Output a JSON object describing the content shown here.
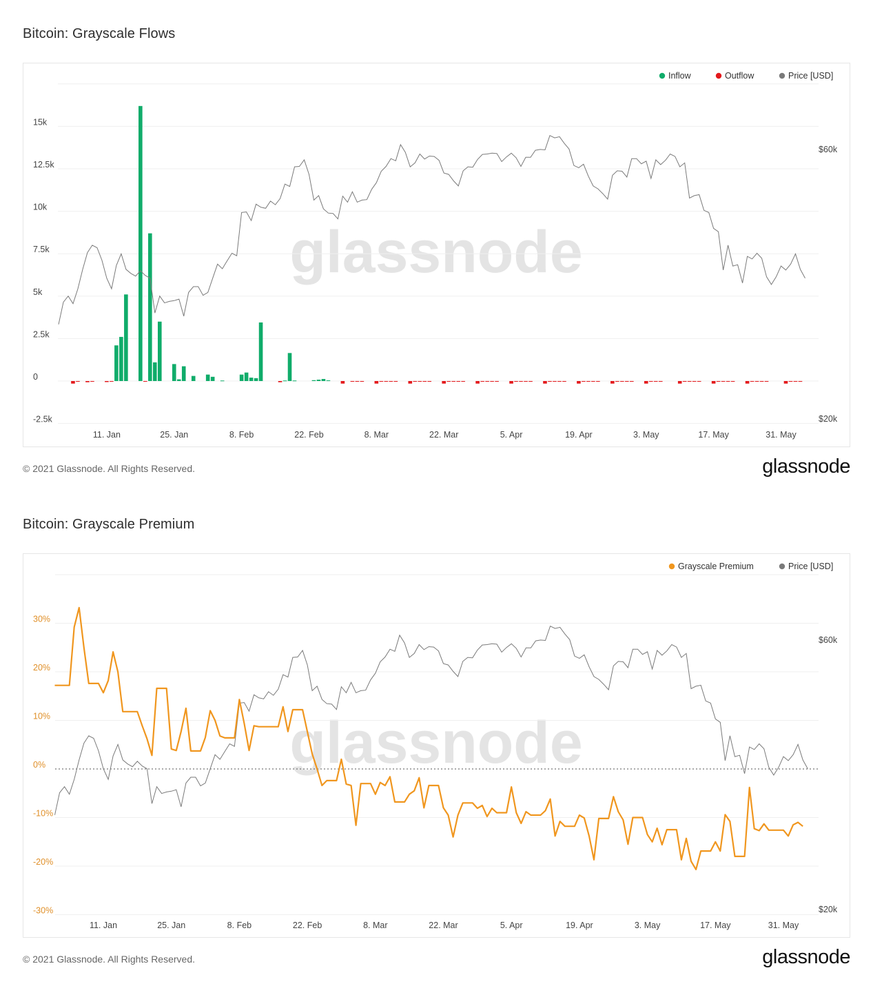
{
  "chart_data": [
    {
      "type": "bar",
      "title": "Bitcoin: Grayscale Flows",
      "start_date": "2021-01-01",
      "legend": [
        {
          "label": "Inflow",
          "color": "#10ac6a"
        },
        {
          "label": "Outflow",
          "color": "#e3191c"
        },
        {
          "label": "Price [USD]",
          "color": "#7a7a7a"
        }
      ],
      "legend_position": "top-right",
      "y_left": {
        "ticks": [
          "15k",
          "12.5k",
          "10k",
          "7.5k",
          "5k",
          "2.5k",
          "0",
          "-2.5k"
        ],
        "tick_values": [
          15000,
          12500,
          10000,
          7500,
          5000,
          2500,
          0,
          -2500
        ],
        "range": [
          -2500,
          17500
        ]
      },
      "y_right": {
        "ticks": [
          "$60k",
          "$20k"
        ],
        "tick_values": [
          60000,
          20000
        ],
        "scale": "log"
      },
      "x_ticks": [
        {
          "label": "11. Jan",
          "day": 10
        },
        {
          "label": "25. Jan",
          "day": 24
        },
        {
          "label": "8. Feb",
          "day": 38
        },
        {
          "label": "22. Feb",
          "day": 52
        },
        {
          "label": "8. Mar",
          "day": 66
        },
        {
          "label": "22. Mar",
          "day": 80
        },
        {
          "label": "5. Apr",
          "day": 94
        },
        {
          "label": "19. Apr",
          "day": 108
        },
        {
          "label": "3. May",
          "day": 122
        },
        {
          "label": "17. May",
          "day": 136
        },
        {
          "label": "31. May",
          "day": 150
        }
      ],
      "inflow": [
        [
          12,
          2100
        ],
        [
          13,
          2600
        ],
        [
          14,
          5100
        ],
        [
          17,
          16200
        ],
        [
          19,
          8700
        ],
        [
          20,
          1100
        ],
        [
          21,
          3500
        ],
        [
          24,
          1000
        ],
        [
          25,
          100
        ],
        [
          26,
          870
        ],
        [
          28,
          300
        ],
        [
          31,
          380
        ],
        [
          32,
          250
        ],
        [
          34,
          30
        ],
        [
          38,
          380
        ],
        [
          39,
          500
        ],
        [
          40,
          200
        ],
        [
          41,
          170
        ],
        [
          42,
          3450
        ],
        [
          47,
          30
        ],
        [
          48,
          1650
        ],
        [
          49,
          30
        ],
        [
          53,
          50
        ],
        [
          54,
          80
        ],
        [
          55,
          120
        ],
        [
          56,
          40
        ]
      ],
      "outflow": [
        [
          3,
          -90
        ],
        [
          4,
          -40
        ],
        [
          6,
          -70
        ],
        [
          7,
          -40
        ],
        [
          10,
          -60
        ],
        [
          11,
          -30
        ],
        [
          18,
          -40
        ],
        [
          46,
          -70
        ],
        [
          59,
          -90
        ],
        [
          61,
          -30
        ],
        [
          62,
          -30
        ],
        [
          63,
          -30
        ],
        [
          66,
          -90
        ],
        [
          67,
          -30
        ],
        [
          68,
          -30
        ],
        [
          69,
          -30
        ],
        [
          70,
          -30
        ],
        [
          73,
          -90
        ],
        [
          74,
          -30
        ],
        [
          75,
          -30
        ],
        [
          76,
          -30
        ],
        [
          77,
          -30
        ],
        [
          80,
          -90
        ],
        [
          81,
          -30
        ],
        [
          82,
          -30
        ],
        [
          83,
          -30
        ],
        [
          84,
          -30
        ],
        [
          87,
          -90
        ],
        [
          88,
          -30
        ],
        [
          89,
          -30
        ],
        [
          90,
          -30
        ],
        [
          91,
          -30
        ],
        [
          94,
          -90
        ],
        [
          95,
          -30
        ],
        [
          96,
          -30
        ],
        [
          97,
          -30
        ],
        [
          98,
          -30
        ],
        [
          101,
          -90
        ],
        [
          102,
          -30
        ],
        [
          103,
          -30
        ],
        [
          104,
          -30
        ],
        [
          105,
          -30
        ],
        [
          108,
          -90
        ],
        [
          109,
          -30
        ],
        [
          110,
          -30
        ],
        [
          111,
          -30
        ],
        [
          112,
          -30
        ],
        [
          115,
          -90
        ],
        [
          116,
          -30
        ],
        [
          117,
          -30
        ],
        [
          118,
          -30
        ],
        [
          119,
          -30
        ],
        [
          122,
          -90
        ],
        [
          123,
          -30
        ],
        [
          124,
          -30
        ],
        [
          125,
          -30
        ],
        [
          129,
          -90
        ],
        [
          130,
          -30
        ],
        [
          131,
          -30
        ],
        [
          132,
          -30
        ],
        [
          133,
          -30
        ],
        [
          136,
          -90
        ],
        [
          137,
          -30
        ],
        [
          138,
          -30
        ],
        [
          139,
          -30
        ],
        [
          140,
          -30
        ],
        [
          143,
          -90
        ],
        [
          144,
          -30
        ],
        [
          145,
          -30
        ],
        [
          146,
          -30
        ],
        [
          147,
          -30
        ],
        [
          151,
          -90
        ],
        [
          152,
          -30
        ],
        [
          153,
          -30
        ],
        [
          154,
          -30
        ]
      ],
      "price_series": "price"
    },
    {
      "type": "line",
      "title": "Bitcoin: Grayscale Premium",
      "start_date": "2021-01-01",
      "legend": [
        {
          "label": "Grayscale Premium",
          "color": "#f0961e"
        },
        {
          "label": "Price [USD]",
          "color": "#7a7a7a"
        }
      ],
      "legend_position": "top-right",
      "y_left": {
        "ticks": [
          "30%",
          "20%",
          "10%",
          "0%",
          "-10%",
          "-20%",
          "-30%"
        ],
        "tick_values": [
          30,
          20,
          10,
          0,
          -10,
          -20,
          -30
        ],
        "range": [
          -30,
          40
        ]
      },
      "y_right": {
        "ticks": [
          "$60k",
          "$20k"
        ],
        "tick_values": [
          60000,
          20000
        ],
        "scale": "log"
      },
      "x_ticks": [
        {
          "label": "11. Jan",
          "day": 10
        },
        {
          "label": "25. Jan",
          "day": 24
        },
        {
          "label": "8. Feb",
          "day": 38
        },
        {
          "label": "22. Feb",
          "day": 52
        },
        {
          "label": "8. Mar",
          "day": 66
        },
        {
          "label": "22. Mar",
          "day": 80
        },
        {
          "label": "5. Apr",
          "day": 94
        },
        {
          "label": "19. Apr",
          "day": 108
        },
        {
          "label": "3. May",
          "day": 122
        },
        {
          "label": "17. May",
          "day": 136
        },
        {
          "label": "31. May",
          "day": 150
        }
      ],
      "premium": [
        [
          0,
          17.2
        ],
        [
          3,
          17.2
        ],
        [
          4,
          29.2
        ],
        [
          5,
          33.2
        ],
        [
          6,
          25
        ],
        [
          7,
          17.6
        ],
        [
          9,
          17.6
        ],
        [
          10,
          15.7
        ],
        [
          11,
          18.2
        ],
        [
          12,
          24.1
        ],
        [
          13,
          20
        ],
        [
          14,
          11.8
        ],
        [
          17,
          11.8
        ],
        [
          18,
          8.9
        ],
        [
          19,
          6.2
        ],
        [
          20,
          2.8
        ],
        [
          21,
          16.6
        ],
        [
          23,
          16.6
        ],
        [
          24,
          4.1
        ],
        [
          25,
          3.8
        ],
        [
          26,
          7.7
        ],
        [
          27,
          12.5
        ],
        [
          28,
          3.7
        ],
        [
          30,
          3.7
        ],
        [
          31,
          6.5
        ],
        [
          32,
          12
        ],
        [
          33,
          10
        ],
        [
          34,
          6.8
        ],
        [
          35,
          6.4
        ],
        [
          37,
          6.4
        ],
        [
          38,
          14.3
        ],
        [
          39,
          9.4
        ],
        [
          40,
          3.8
        ],
        [
          41,
          8.9
        ],
        [
          42,
          8.7
        ],
        [
          46,
          8.7
        ],
        [
          47,
          12.8
        ],
        [
          48,
          7.7
        ],
        [
          49,
          12.2
        ],
        [
          51,
          12.2
        ],
        [
          53,
          3.1
        ],
        [
          54,
          0
        ],
        [
          55,
          -3.4
        ],
        [
          56,
          -2.4
        ],
        [
          58,
          -2.4
        ],
        [
          59,
          2
        ],
        [
          60,
          -3.1
        ],
        [
          61,
          -3.4
        ],
        [
          62,
          -11.6
        ],
        [
          63,
          -3
        ],
        [
          65,
          -3
        ],
        [
          66,
          -5.2
        ],
        [
          67,
          -2.8
        ],
        [
          68,
          -3.4
        ],
        [
          69,
          -1.6
        ],
        [
          70,
          -6.8
        ],
        [
          72,
          -6.8
        ],
        [
          73,
          -5.2
        ],
        [
          74,
          -4.5
        ],
        [
          75,
          -1.8
        ],
        [
          76,
          -8
        ],
        [
          77,
          -3.4
        ],
        [
          79,
          -3.4
        ],
        [
          80,
          -8
        ],
        [
          81,
          -9.5
        ],
        [
          82,
          -14
        ],
        [
          83,
          -9.5
        ],
        [
          84,
          -7
        ],
        [
          86,
          -7
        ],
        [
          87,
          -8.1
        ],
        [
          88,
          -7.5
        ],
        [
          89,
          -9.8
        ],
        [
          90,
          -8.1
        ],
        [
          91,
          -9
        ],
        [
          93,
          -9
        ],
        [
          94,
          -3.7
        ],
        [
          95,
          -9
        ],
        [
          96,
          -11.2
        ],
        [
          97,
          -8.8
        ],
        [
          98,
          -9.5
        ],
        [
          100,
          -9.5
        ],
        [
          101,
          -8.6
        ],
        [
          102,
          -6.2
        ],
        [
          103,
          -13.8
        ],
        [
          104,
          -10.8
        ],
        [
          105,
          -11.8
        ],
        [
          107,
          -11.8
        ],
        [
          108,
          -9.5
        ],
        [
          109,
          -10.1
        ],
        [
          110,
          -13.8
        ],
        [
          111,
          -18.7
        ],
        [
          112,
          -10.2
        ],
        [
          114,
          -10.2
        ],
        [
          115,
          -5.7
        ],
        [
          116,
          -8.8
        ],
        [
          117,
          -10.5
        ],
        [
          118,
          -15.5
        ],
        [
          119,
          -10
        ],
        [
          121,
          -10
        ],
        [
          122,
          -13.5
        ],
        [
          123,
          -15
        ],
        [
          124,
          -12.2
        ],
        [
          125,
          -15.6
        ],
        [
          126,
          -12.5
        ],
        [
          128,
          -12.5
        ],
        [
          129,
          -18.7
        ],
        [
          130,
          -14.3
        ],
        [
          131,
          -19
        ],
        [
          132,
          -20.7
        ],
        [
          133,
          -16.9
        ],
        [
          135,
          -16.9
        ],
        [
          136,
          -15
        ],
        [
          137,
          -16.9
        ],
        [
          138,
          -9.4
        ],
        [
          139,
          -10.8
        ],
        [
          140,
          -18
        ],
        [
          142,
          -18
        ],
        [
          143,
          -3.8
        ],
        [
          144,
          -12.3
        ],
        [
          145,
          -12.7
        ],
        [
          146,
          -11.3
        ],
        [
          147,
          -12.6
        ],
        [
          150,
          -12.6
        ],
        [
          151,
          -13.8
        ],
        [
          152,
          -11.5
        ],
        [
          153,
          -11
        ],
        [
          154,
          -11.8
        ]
      ],
      "price_series": "price"
    }
  ],
  "price": [
    29400,
    32200,
    33000,
    32000,
    34000,
    36800,
    39400,
    40600,
    40200,
    38200,
    35500,
    34000,
    37400,
    39200,
    36800,
    36200,
    35800,
    36600,
    35900,
    35500,
    30800,
    33000,
    32100,
    32300,
    32400,
    32600,
    30400,
    33500,
    34300,
    34300,
    33100,
    33500,
    35500,
    37600,
    36900,
    38100,
    39300,
    38900,
    46400,
    46500,
    44900,
    48000,
    47400,
    47200,
    48600,
    47900,
    49100,
    52100,
    51600,
    55900,
    56000,
    57500,
    54200,
    48800,
    49700,
    47100,
    46300,
    46200,
    45200,
    49600,
    48400,
    50500,
    48400,
    48800,
    48900,
    51000,
    52400,
    54900,
    56000,
    57800,
    57300,
    61200,
    59300,
    55900,
    56800,
    58900,
    57700,
    58400,
    58300,
    57400,
    54500,
    54200,
    52800,
    51700,
    55000,
    55900,
    55800,
    57600,
    58800,
    58900,
    59100,
    59000,
    57100,
    58200,
    59100,
    58000,
    56000,
    58100,
    58100,
    59800,
    60000,
    59900,
    63500,
    62900,
    63200,
    61500,
    60100,
    56200,
    55700,
    56500,
    53800,
    51700,
    51100,
    50100,
    49000,
    54000,
    55000,
    54900,
    53600,
    57800,
    57800,
    56600,
    57200,
    53300,
    57500,
    56400,
    57400,
    58900,
    58300,
    55900,
    56800,
    49200,
    49700,
    49900,
    46800,
    46400,
    43500,
    42900,
    36700,
    40600,
    37300,
    37500,
    34800,
    38800,
    38400,
    39300,
    38500,
    35700,
    34600,
    35700,
    37300,
    36700,
    37600,
    39200,
    36800,
    35500
  ],
  "footer": {
    "copyright": "© 2021 Glassnode. All Rights Reserved.",
    "logo": "glassnode"
  },
  "watermark": "glassnode"
}
